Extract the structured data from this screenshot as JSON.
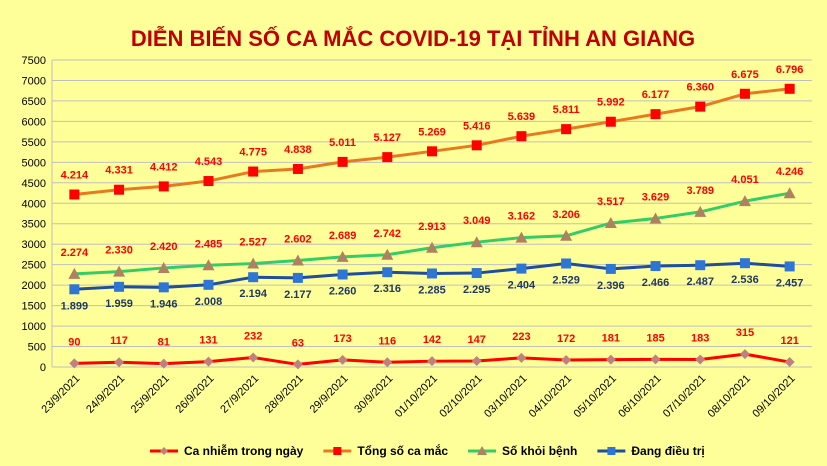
{
  "chart_data": {
    "type": "line",
    "title": "DIỄN BIẾN SỐ CA MẮC COVID-19 TẠI TỈNH AN GIANG",
    "title_color": "#C00000",
    "background": "#FFFF99",
    "ylim": [
      0,
      7500
    ],
    "yticks": [
      0,
      500,
      1000,
      1500,
      2000,
      2500,
      3000,
      3500,
      4000,
      4500,
      5000,
      5500,
      6000,
      6500,
      7000,
      7500
    ],
    "grid": true,
    "legend_position": "bottom",
    "categories": [
      "23/9/2021",
      "24/9/2021",
      "25/9/2021",
      "26/9/2021",
      "27/9/2021",
      "28/9/2021",
      "29/9/2021",
      "30/9/2021",
      "01/10/2021",
      "02/10/2021",
      "03/10/2021",
      "04/10/2021",
      "05/10/2021",
      "06/10/2021",
      "07/10/2021",
      "08/10/2021",
      "09/10/2021"
    ],
    "series": [
      {
        "name": "Ca nhiễm trong ngày",
        "color": "#FF0000",
        "marker_color": "#C08080",
        "marker": "diamond",
        "label_color": "#FF0000",
        "values": [
          90,
          117,
          81,
          131,
          232,
          63,
          173,
          116,
          142,
          147,
          223,
          172,
          181,
          185,
          183,
          315,
          121
        ],
        "labels": [
          "90",
          "117",
          "81",
          "131",
          "232",
          "63",
          "173",
          "116",
          "142",
          "147",
          "223",
          "172",
          "181",
          "185",
          "183",
          "315",
          "121"
        ]
      },
      {
        "name": "Tổng số ca mắc",
        "color": "#E87A1E",
        "marker_color": "#FF0000",
        "marker": "square",
        "label_color": "#FF0000",
        "values": [
          4214,
          4331,
          4412,
          4543,
          4775,
          4838,
          5011,
          5127,
          5269,
          5416,
          5639,
          5811,
          5992,
          6177,
          6360,
          6675,
          6796
        ],
        "labels": [
          "4.214",
          "4.331",
          "4.412",
          "4.543",
          "4.775",
          "4.838",
          "5.011",
          "5.127",
          "5.269",
          "5.416",
          "5.639",
          "5.811",
          "5.992",
          "6.177",
          "6.360",
          "6.675",
          "6.796"
        ]
      },
      {
        "name": "Số khỏi bệnh",
        "color": "#33CC66",
        "marker_color": "#B08060",
        "marker": "triangle",
        "label_color": "#FF0000",
        "values": [
          2274,
          2330,
          2420,
          2485,
          2527,
          2602,
          2689,
          2742,
          2913,
          3049,
          3162,
          3206,
          3517,
          3629,
          3789,
          4051,
          4246
        ],
        "labels": [
          "2.274",
          "2.330",
          "2.420",
          "2.485",
          "2.527",
          "2.602",
          "2.689",
          "2.742",
          "2.913",
          "3.049",
          "3.162",
          "3.206",
          "3.517",
          "3.629",
          "3.789",
          "4.051",
          "4.246"
        ]
      },
      {
        "name": "Đang điều trị",
        "color": "#1F4E9A",
        "marker_color": "#2E75D6",
        "marker": "square",
        "label_color": "#1F3864",
        "values": [
          1899,
          1959,
          1946,
          2008,
          2194,
          2177,
          2260,
          2316,
          2285,
          2295,
          2404,
          2529,
          2396,
          2466,
          2487,
          2536,
          2457
        ],
        "labels": [
          "1.899",
          "1.959",
          "1.946",
          "2.008",
          "2.194",
          "2.177",
          "2.260",
          "2.316",
          "2.285",
          "2.295",
          "2.404",
          "2.529",
          "2.396",
          "2.466",
          "2.487",
          "2.536",
          "2.457"
        ]
      }
    ]
  }
}
